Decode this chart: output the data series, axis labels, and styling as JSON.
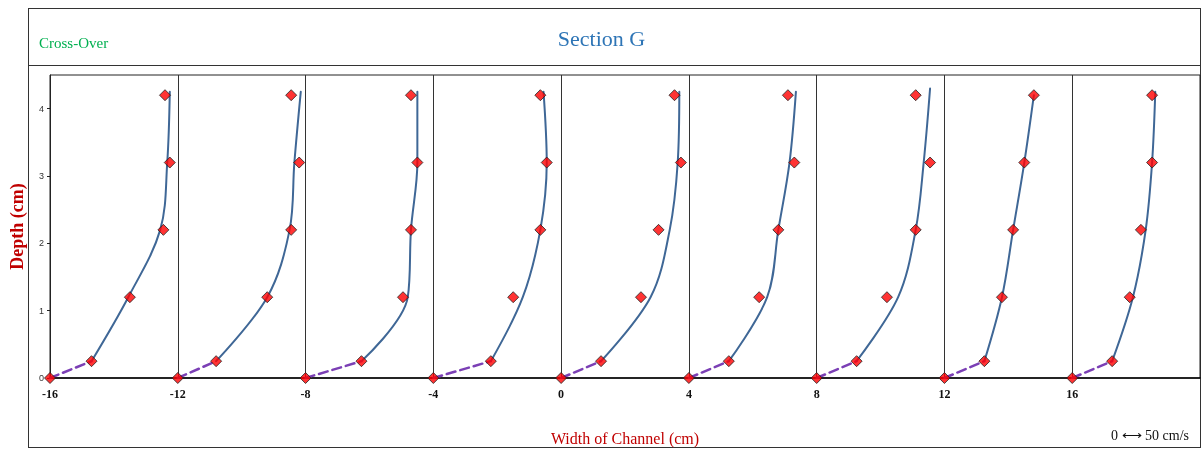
{
  "chart_data": {
    "type": "scatter",
    "title": "Section G",
    "subtitle": "Cross-Over",
    "xlabel": "Width of Channel (cm)",
    "ylabel": "Depth (cm)",
    "annotations": [
      "0 ⟷ 50 cm/s"
    ],
    "xlim": [
      -16,
      20
    ],
    "xticks": [
      -16,
      -12,
      -8,
      -4,
      0,
      4,
      8,
      12,
      16
    ],
    "ylim": [
      0,
      4.5
    ],
    "yticks": [
      0,
      1,
      2,
      3,
      4
    ],
    "grid": "x",
    "series": [
      {
        "type": "scatter",
        "marker": "diamond",
        "color": "#ff0000",
        "x": [
          -16,
          -14.7,
          -13.5,
          -12.45,
          -12.25,
          -12.4,
          -12,
          -10.8,
          -9.2,
          -8.45,
          -8.2,
          -8.45,
          -8,
          -6.25,
          -4.95,
          -4.7,
          -4.5,
          -4.7,
          -4,
          -2.2,
          -1.5,
          -0.65,
          -0.45,
          -0.65,
          0,
          1.25,
          2.5,
          3.05,
          3.75,
          3.55,
          4,
          5.25,
          6.2,
          6.8,
          7.3,
          7.1,
          8,
          9.25,
          10.2,
          11.1,
          11.55,
          11.1,
          12,
          13.25,
          13.8,
          14.15,
          14.5,
          14.8,
          16,
          17.25,
          17.8,
          18.15,
          18.5,
          18.5
        ],
        "values": [
          0,
          0.25,
          1.2,
          2.2,
          3.2,
          4.2,
          0,
          0.25,
          1.2,
          2.2,
          3.2,
          4.2,
          0,
          0.25,
          1.2,
          2.2,
          3.2,
          4.2,
          0,
          0.25,
          1.2,
          2.2,
          3.2,
          4.2,
          0,
          0.25,
          1.2,
          2.2,
          3.2,
          4.2,
          0,
          0.25,
          1.2,
          2.2,
          3.2,
          4.2,
          0,
          0.25,
          1.2,
          2.2,
          3.2,
          4.2,
          0,
          0.25,
          1.2,
          2.2,
          3.2,
          4.2,
          0,
          0.25,
          1.2,
          2.2,
          3.2,
          4.2
        ]
      },
      {
        "type": "line",
        "marker": "none",
        "color": "#3f6796",
        "x": [
          -14.7,
          -13.55,
          -12.55,
          -12.33,
          -12.25,
          null,
          -10.8,
          -9.2,
          -8.5,
          -8.35,
          -8.15,
          null,
          -6.25,
          -4.8,
          -4.7,
          -4.5,
          -4.5,
          null,
          -2.2,
          -1.2,
          -0.65,
          -0.45,
          -0.55,
          null,
          1.25,
          2.8,
          3.4,
          3.65,
          3.7,
          null,
          5.25,
          6.45,
          6.8,
          7.15,
          7.35,
          null,
          9.25,
          10.55,
          11.1,
          11.35,
          11.55,
          null,
          13.25,
          13.8,
          14.15,
          14.5,
          14.8,
          null,
          17.25,
          17.9,
          18.3,
          18.5,
          18.6
        ],
        "values": [
          0.25,
          1.2,
          2.2,
          3.2,
          4.25,
          null,
          0.25,
          1.2,
          2.2,
          3.2,
          4.25,
          null,
          0.25,
          1.2,
          2.2,
          3.2,
          4.25,
          null,
          0.25,
          1.2,
          2.2,
          3.2,
          4.25,
          null,
          0.25,
          1.2,
          2.2,
          3.2,
          4.25,
          null,
          0.25,
          1.2,
          2.2,
          3.2,
          4.25,
          null,
          0.25,
          1.2,
          2.2,
          3.2,
          4.3,
          null,
          0.25,
          1.2,
          2.2,
          3.2,
          4.2,
          null,
          0.25,
          1.2,
          2.2,
          3.2,
          4.25
        ]
      },
      {
        "type": "line",
        "marker": "none",
        "color": "#7b3fb5",
        "line_style": "dashed",
        "x": [
          -16,
          -14.7,
          null,
          -12,
          -10.8,
          null,
          -8,
          -6.25,
          null,
          -4,
          -2.2,
          null,
          0,
          1.25,
          null,
          4,
          5.25,
          null,
          8,
          9.25,
          null,
          12,
          13.25,
          null,
          16,
          17.25
        ],
        "values": [
          0,
          0.25,
          null,
          0,
          0.25,
          null,
          0,
          0.25,
          null,
          0,
          0.25,
          null,
          0,
          0.25,
          null,
          0,
          0.25,
          null,
          0,
          0.25,
          null,
          0,
          0.25,
          null,
          0,
          0.25
        ]
      }
    ]
  }
}
